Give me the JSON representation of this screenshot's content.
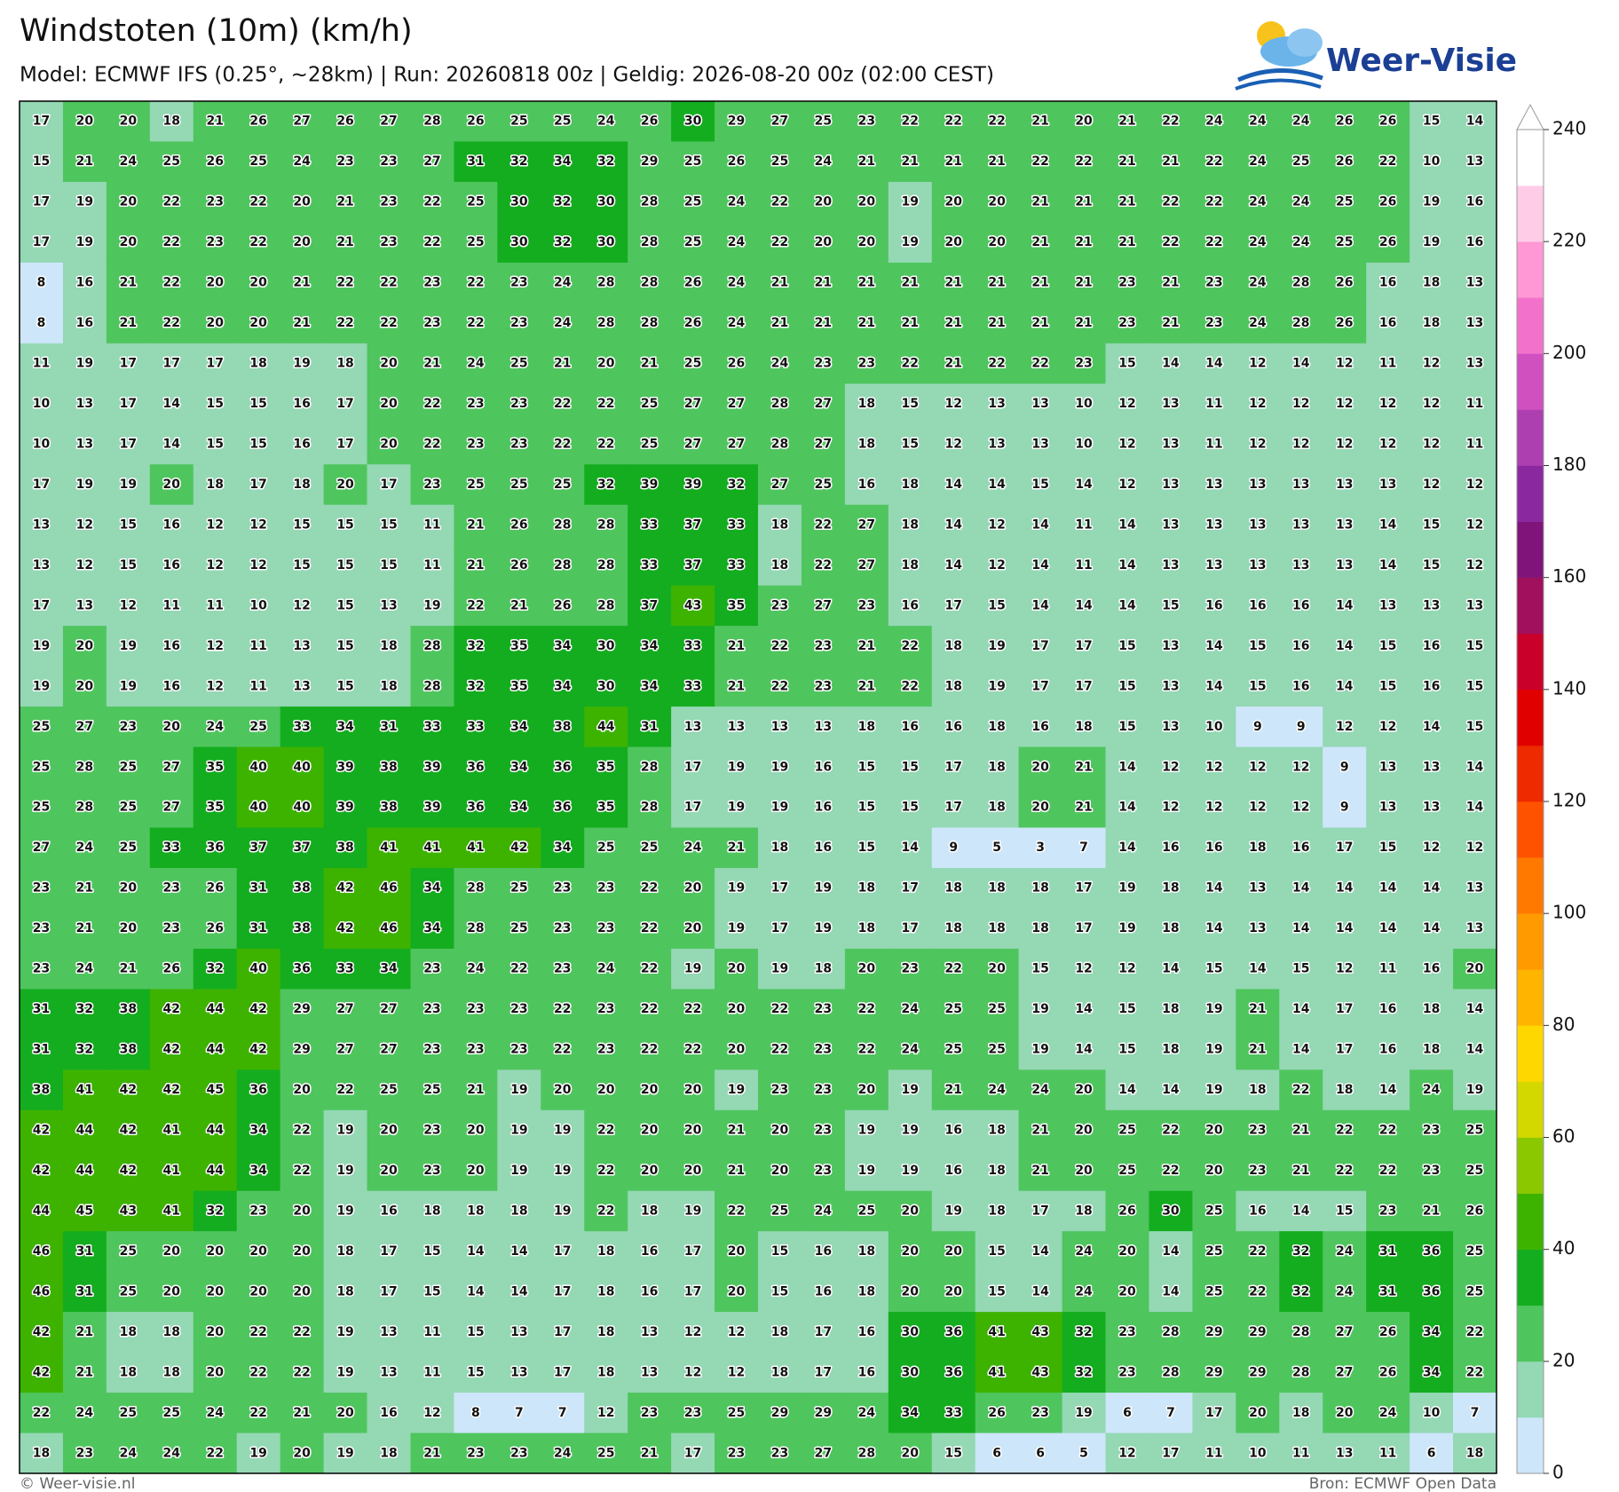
{
  "header": {
    "title": "Windstoten (10m) (km/h)",
    "subtitle": "Model: ECMWF IFS (0.25°, ~28km)  |  Run: 20260818 00z  |  Geldig: 2026-08-20 00z (02:00 CEST)"
  },
  "logo": "Weer-Visie",
  "map": {
    "values": [
      [
        17,
        20,
        20,
        18,
        21,
        26,
        27,
        26,
        27,
        28,
        26,
        25,
        25,
        24,
        26,
        30,
        29,
        27,
        25,
        23,
        22,
        22,
        22,
        21,
        20,
        21,
        22,
        24,
        24,
        24,
        26,
        26,
        15,
        14
      ],
      [
        15,
        21,
        24,
        25,
        26,
        25,
        24,
        23,
        23,
        27,
        31,
        32,
        34,
        32,
        29,
        25,
        26,
        25,
        24,
        21,
        21,
        21,
        21,
        22,
        22,
        21,
        21,
        22,
        24,
        25,
        26,
        22,
        10,
        13
      ],
      [
        17,
        19,
        20,
        22,
        23,
        22,
        20,
        21,
        23,
        22,
        25,
        30,
        32,
        30,
        28,
        25,
        24,
        22,
        20,
        20,
        19,
        20,
        20,
        21,
        21,
        21,
        22,
        22,
        24,
        24,
        25,
        26,
        19,
        16
      ],
      [
        17,
        19,
        20,
        22,
        23,
        22,
        20,
        21,
        23,
        22,
        25,
        30,
        32,
        30,
        28,
        25,
        24,
        22,
        20,
        20,
        19,
        20,
        20,
        21,
        21,
        21,
        22,
        22,
        24,
        24,
        25,
        26,
        19,
        16
      ],
      [
        8,
        16,
        21,
        22,
        20,
        20,
        21,
        22,
        22,
        23,
        22,
        23,
        24,
        28,
        28,
        26,
        24,
        21,
        21,
        21,
        21,
        21,
        21,
        21,
        21,
        23,
        21,
        23,
        24,
        28,
        26,
        16,
        18,
        13
      ],
      [
        8,
        16,
        21,
        22,
        20,
        20,
        21,
        22,
        22,
        23,
        22,
        23,
        24,
        28,
        28,
        26,
        24,
        21,
        21,
        21,
        21,
        21,
        21,
        21,
        21,
        23,
        21,
        23,
        24,
        28,
        26,
        16,
        18,
        13
      ],
      [
        11,
        19,
        17,
        17,
        17,
        18,
        19,
        18,
        20,
        21,
        24,
        25,
        21,
        20,
        21,
        25,
        26,
        24,
        23,
        23,
        22,
        21,
        22,
        22,
        23,
        15,
        14,
        14,
        12,
        14,
        12,
        11,
        12,
        13
      ],
      [
        10,
        13,
        17,
        14,
        15,
        15,
        16,
        17,
        20,
        22,
        23,
        23,
        22,
        22,
        25,
        27,
        27,
        28,
        27,
        18,
        15,
        12,
        13,
        13,
        10,
        12,
        13,
        11,
        12,
        12,
        12,
        12,
        12,
        11
      ],
      [
        10,
        13,
        17,
        14,
        15,
        15,
        16,
        17,
        20,
        22,
        23,
        23,
        22,
        22,
        25,
        27,
        27,
        28,
        27,
        18,
        15,
        12,
        13,
        13,
        10,
        12,
        13,
        11,
        12,
        12,
        12,
        12,
        12,
        11
      ],
      [
        17,
        19,
        19,
        20,
        18,
        17,
        18,
        20,
        17,
        23,
        25,
        25,
        25,
        32,
        39,
        39,
        32,
        27,
        25,
        16,
        18,
        14,
        14,
        15,
        14,
        12,
        13,
        13,
        13,
        13,
        13,
        13,
        12,
        12
      ],
      [
        13,
        12,
        15,
        16,
        12,
        12,
        15,
        15,
        15,
        11,
        21,
        26,
        28,
        28,
        33,
        37,
        33,
        18,
        22,
        27,
        18,
        14,
        12,
        14,
        11,
        14,
        13,
        13,
        13,
        13,
        13,
        14,
        15,
        12
      ],
      [
        13,
        12,
        15,
        16,
        12,
        12,
        15,
        15,
        15,
        11,
        21,
        26,
        28,
        28,
        33,
        37,
        33,
        18,
        22,
        27,
        18,
        14,
        12,
        14,
        11,
        14,
        13,
        13,
        13,
        13,
        13,
        14,
        15,
        12
      ],
      [
        17,
        13,
        12,
        11,
        11,
        10,
        12,
        15,
        13,
        19,
        22,
        21,
        26,
        28,
        37,
        43,
        35,
        23,
        27,
        23,
        16,
        17,
        15,
        14,
        14,
        14,
        15,
        16,
        16,
        16,
        14,
        13,
        13,
        13
      ],
      [
        19,
        20,
        19,
        16,
        12,
        11,
        13,
        15,
        18,
        28,
        32,
        35,
        34,
        30,
        34,
        33,
        21,
        22,
        23,
        21,
        22,
        18,
        19,
        17,
        17,
        15,
        13,
        14,
        15,
        16,
        14,
        15,
        16,
        15
      ],
      [
        19,
        20,
        19,
        16,
        12,
        11,
        13,
        15,
        18,
        28,
        32,
        35,
        34,
        30,
        34,
        33,
        21,
        22,
        23,
        21,
        22,
        18,
        19,
        17,
        17,
        15,
        13,
        14,
        15,
        16,
        14,
        15,
        16,
        15
      ],
      [
        25,
        27,
        23,
        20,
        24,
        25,
        33,
        34,
        31,
        33,
        33,
        34,
        38,
        44,
        31,
        13,
        13,
        13,
        13,
        18,
        16,
        16,
        18,
        16,
        18,
        15,
        13,
        10,
        9,
        9,
        12,
        12,
        14,
        15
      ],
      [
        25,
        28,
        25,
        27,
        35,
        40,
        40,
        39,
        38,
        39,
        36,
        34,
        36,
        35,
        28,
        17,
        19,
        19,
        16,
        15,
        15,
        17,
        18,
        20,
        21,
        14,
        12,
        12,
        12,
        12,
        9,
        13,
        13,
        14
      ],
      [
        25,
        28,
        25,
        27,
        35,
        40,
        40,
        39,
        38,
        39,
        36,
        34,
        36,
        35,
        28,
        17,
        19,
        19,
        16,
        15,
        15,
        17,
        18,
        20,
        21,
        14,
        12,
        12,
        12,
        12,
        9,
        13,
        13,
        14
      ],
      [
        27,
        24,
        25,
        33,
        36,
        37,
        37,
        38,
        41,
        41,
        41,
        42,
        34,
        25,
        25,
        24,
        21,
        18,
        16,
        15,
        14,
        9,
        5,
        3,
        7,
        14,
        16,
        16,
        18,
        16,
        17,
        15,
        12,
        12
      ],
      [
        23,
        21,
        20,
        23,
        26,
        31,
        38,
        42,
        46,
        34,
        28,
        25,
        23,
        23,
        22,
        20,
        19,
        17,
        19,
        18,
        17,
        18,
        18,
        18,
        17,
        19,
        18,
        14,
        13,
        14,
        14,
        14,
        14,
        13
      ],
      [
        23,
        21,
        20,
        23,
        26,
        31,
        38,
        42,
        46,
        34,
        28,
        25,
        23,
        23,
        22,
        20,
        19,
        17,
        19,
        18,
        17,
        18,
        18,
        18,
        17,
        19,
        18,
        14,
        13,
        14,
        14,
        14,
        14,
        13
      ],
      [
        23,
        24,
        21,
        26,
        32,
        40,
        36,
        33,
        34,
        23,
        24,
        22,
        23,
        24,
        22,
        19,
        20,
        19,
        18,
        20,
        23,
        22,
        20,
        15,
        12,
        12,
        14,
        15,
        14,
        15,
        12,
        11,
        16,
        20
      ],
      [
        31,
        32,
        38,
        42,
        44,
        42,
        29,
        27,
        27,
        23,
        23,
        23,
        22,
        23,
        22,
        22,
        20,
        22,
        23,
        22,
        24,
        25,
        25,
        19,
        14,
        15,
        18,
        19,
        21,
        14,
        17,
        16,
        18,
        14
      ],
      [
        31,
        32,
        38,
        42,
        44,
        42,
        29,
        27,
        27,
        23,
        23,
        23,
        22,
        23,
        22,
        22,
        20,
        22,
        23,
        22,
        24,
        25,
        25,
        19,
        14,
        15,
        18,
        19,
        21,
        14,
        17,
        16,
        18,
        14
      ],
      [
        38,
        41,
        42,
        42,
        45,
        36,
        20,
        22,
        25,
        25,
        21,
        19,
        20,
        20,
        20,
        20,
        19,
        23,
        23,
        20,
        19,
        21,
        24,
        24,
        20,
        14,
        14,
        19,
        18,
        22,
        18,
        14,
        24,
        19
      ],
      [
        42,
        44,
        42,
        41,
        44,
        34,
        22,
        19,
        20,
        23,
        20,
        19,
        19,
        22,
        20,
        20,
        21,
        20,
        23,
        19,
        19,
        16,
        18,
        21,
        20,
        25,
        22,
        20,
        23,
        21,
        22,
        22,
        23,
        25
      ],
      [
        42,
        44,
        42,
        41,
        44,
        34,
        22,
        19,
        20,
        23,
        20,
        19,
        19,
        22,
        20,
        20,
        21,
        20,
        23,
        19,
        19,
        16,
        18,
        21,
        20,
        25,
        22,
        20,
        23,
        21,
        22,
        22,
        23,
        25
      ],
      [
        44,
        45,
        43,
        41,
        32,
        23,
        20,
        19,
        16,
        18,
        18,
        18,
        19,
        22,
        18,
        19,
        22,
        25,
        24,
        25,
        20,
        19,
        18,
        17,
        18,
        26,
        30,
        25,
        16,
        14,
        15,
        23,
        21,
        26
      ],
      [
        46,
        31,
        25,
        20,
        20,
        20,
        20,
        18,
        17,
        15,
        14,
        14,
        17,
        18,
        16,
        17,
        20,
        15,
        16,
        18,
        20,
        20,
        15,
        14,
        24,
        20,
        14,
        25,
        22,
        32,
        24,
        31,
        36,
        25
      ],
      [
        46,
        31,
        25,
        20,
        20,
        20,
        20,
        18,
        17,
        15,
        14,
        14,
        17,
        18,
        16,
        17,
        20,
        15,
        16,
        18,
        20,
        20,
        15,
        14,
        24,
        20,
        14,
        25,
        22,
        32,
        24,
        31,
        36,
        25
      ],
      [
        42,
        21,
        18,
        18,
        20,
        22,
        22,
        19,
        13,
        11,
        15,
        13,
        17,
        18,
        13,
        12,
        12,
        18,
        17,
        16,
        30,
        36,
        41,
        43,
        32,
        23,
        28,
        29,
        29,
        28,
        27,
        26,
        34,
        22
      ],
      [
        42,
        21,
        18,
        18,
        20,
        22,
        22,
        19,
        13,
        11,
        15,
        13,
        17,
        18,
        13,
        12,
        12,
        18,
        17,
        16,
        30,
        36,
        41,
        43,
        32,
        23,
        28,
        29,
        29,
        28,
        27,
        26,
        34,
        22
      ],
      [
        22,
        24,
        25,
        25,
        24,
        22,
        21,
        20,
        16,
        12,
        8,
        7,
        7,
        12,
        23,
        23,
        25,
        29,
        29,
        24,
        34,
        33,
        26,
        23,
        19,
        6,
        7,
        17,
        20,
        18,
        20,
        24,
        10,
        7
      ],
      [
        18,
        23,
        24,
        24,
        22,
        19,
        20,
        19,
        18,
        21,
        23,
        23,
        24,
        25,
        21,
        17,
        23,
        23,
        27,
        28,
        20,
        15,
        6,
        6,
        5,
        12,
        17,
        11,
        10,
        11,
        13,
        11,
        6,
        18
      ]
    ]
  },
  "colorbar": {
    "levels": [
      0,
      10,
      20,
      30,
      40,
      50,
      60,
      70,
      80,
      90,
      100,
      110,
      120,
      130,
      140,
      150,
      160,
      170,
      180,
      190,
      200,
      210,
      220,
      230,
      240
    ],
    "colors": [
      "#cde6fa",
      "#94d8b4",
      "#4fc55e",
      "#14ad1f",
      "#3db300",
      "#8cc800",
      "#d2d800",
      "#ffd700",
      "#ffb400",
      "#ff9a00",
      "#ff7800",
      "#ff5200",
      "#ee2a00",
      "#e00000",
      "#c8002a",
      "#a0105c",
      "#80147a",
      "#8a28a0",
      "#ad3fb0",
      "#d050c0",
      "#f272cb",
      "#ff98d4",
      "#ffcce8",
      "#ffffff"
    ],
    "ticks": [
      0,
      20,
      40,
      60,
      80,
      100,
      120,
      140,
      160,
      180,
      200,
      220,
      240
    ]
  },
  "footer": {
    "left": "© Weer-visie.nl",
    "right": "Bron: ECMWF Open Data"
  }
}
